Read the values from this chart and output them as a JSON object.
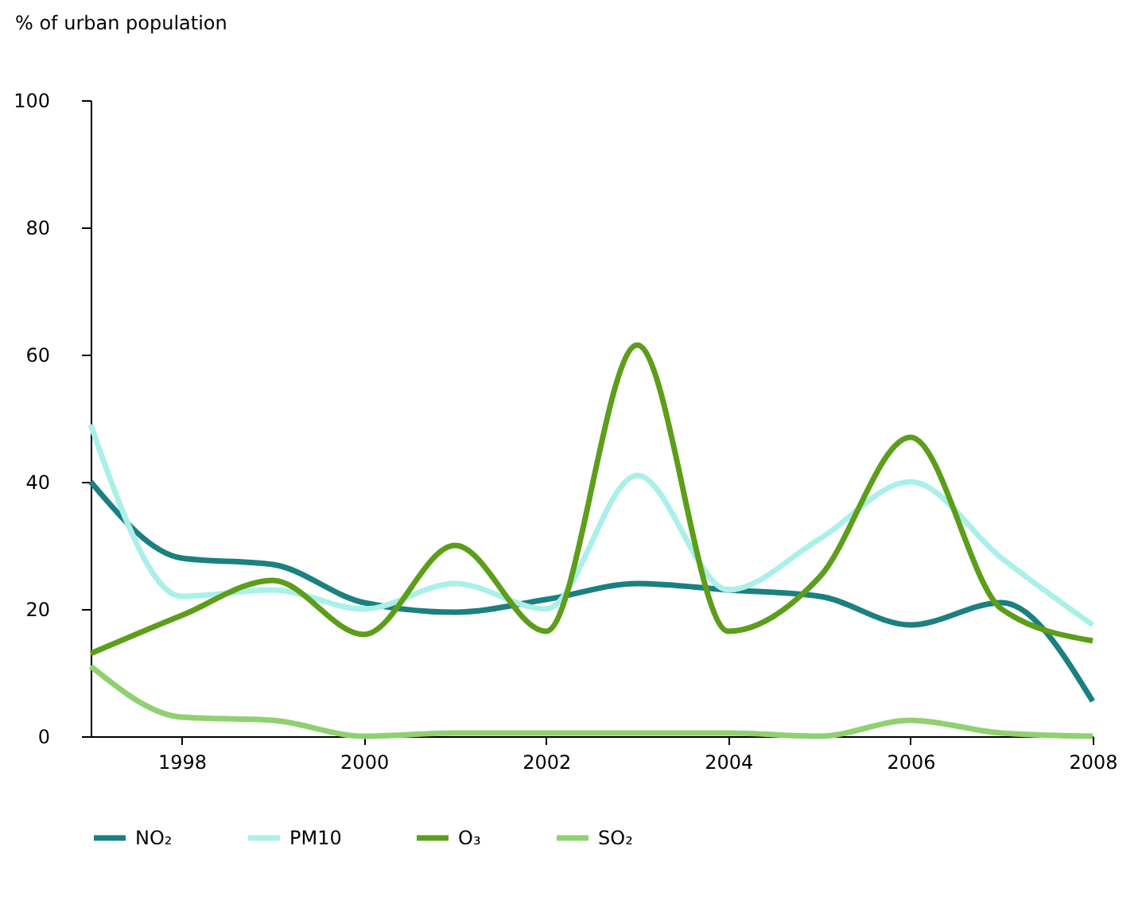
{
  "chart_data": {
    "type": "line",
    "ylabel": "% of urban population",
    "x": [
      1997,
      1998,
      1999,
      2000,
      2001,
      2002,
      2003,
      2004,
      2005,
      2006,
      2007,
      2008
    ],
    "xlim": [
      1997,
      2008
    ],
    "xticks": [
      1998,
      2000,
      2002,
      2004,
      2006,
      2008
    ],
    "ylim": [
      0,
      100
    ],
    "yticks": [
      0,
      20,
      40,
      60,
      80,
      100
    ],
    "grid": false,
    "legend": "bottom",
    "marker": "none",
    "line_style": "solid",
    "series": [
      {
        "name": "NO₂",
        "color": "#1a8080",
        "values": [
          40,
          28,
          27,
          21,
          19.5,
          21.5,
          24,
          23,
          22,
          17.5,
          21,
          5.5
        ]
      },
      {
        "name": "PM10",
        "color": "#aaf0e8",
        "values": [
          49,
          22,
          23,
          20,
          24,
          20,
          41,
          23,
          31,
          40,
          28,
          17.5
        ]
      },
      {
        "name": "O₃",
        "color": "#5c9e1a",
        "values": [
          13,
          19,
          24.5,
          16,
          30,
          16.5,
          61.5,
          16.5,
          25,
          47,
          20,
          15
        ]
      },
      {
        "name": "SO₂",
        "color": "#90d070",
        "values": [
          11,
          3,
          2.5,
          0,
          0.5,
          0.5,
          0.5,
          0.5,
          0,
          2.5,
          0.5,
          0
        ]
      }
    ]
  }
}
